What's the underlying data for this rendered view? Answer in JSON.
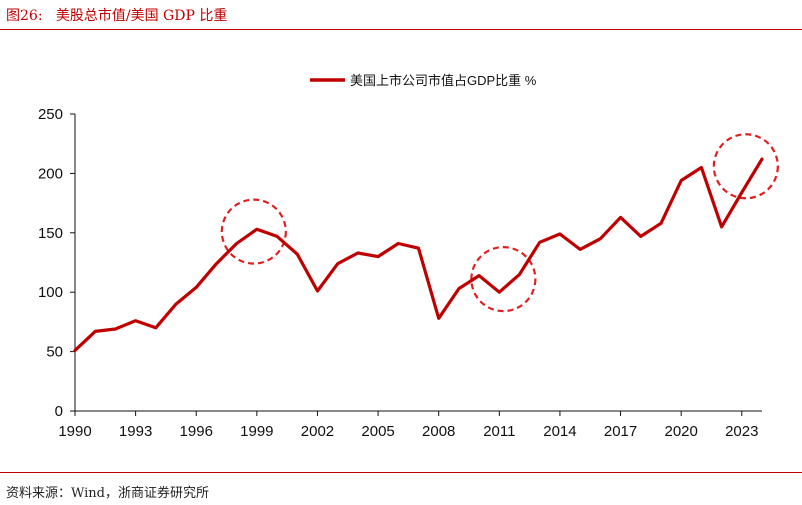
{
  "header": {
    "figure_label": "图26:",
    "title": "美股总市值/美国 GDP 比重"
  },
  "footer": {
    "source": "资料来源：Wind，浙商证券研究所"
  },
  "colors": {
    "line": "#c00000",
    "highlight": "#e02020",
    "axis": "#111111"
  },
  "chart_data": {
    "type": "line",
    "title": "",
    "xlabel": "",
    "ylabel": "",
    "legend_position": "top-center",
    "grid": false,
    "ylim": [
      0,
      250
    ],
    "xlim": [
      1990,
      2024
    ],
    "yticks": [
      0,
      50,
      100,
      150,
      200,
      250
    ],
    "xticks": [
      1990,
      1993,
      1996,
      1999,
      2002,
      2005,
      2008,
      2011,
      2014,
      2017,
      2020,
      2023
    ],
    "series": [
      {
        "name": "美国上市公司市值占GDP比重 %",
        "x": [
          1990,
          1991,
          1992,
          1993,
          1994,
          1995,
          1996,
          1997,
          1998,
          1999,
          2000,
          2001,
          2002,
          2003,
          2004,
          2005,
          2006,
          2007,
          2008,
          2009,
          2010,
          2011,
          2012,
          2013,
          2014,
          2015,
          2016,
          2017,
          2018,
          2019,
          2020,
          2021,
          2022,
          2023,
          2024
        ],
        "values": [
          51,
          67,
          69,
          76,
          70,
          90,
          104,
          124,
          141,
          153,
          147,
          132,
          101,
          124,
          133,
          130,
          141,
          137,
          78,
          103,
          114,
          100,
          115,
          142,
          149,
          136,
          145,
          163,
          147,
          158,
          194,
          205,
          155,
          184,
          212
        ]
      }
    ],
    "highlights": [
      {
        "center_x": 1998.85,
        "center_y": 151
      },
      {
        "center_x": 2011.2,
        "center_y": 111
      },
      {
        "center_x": 2023.2,
        "center_y": 206
      }
    ]
  }
}
